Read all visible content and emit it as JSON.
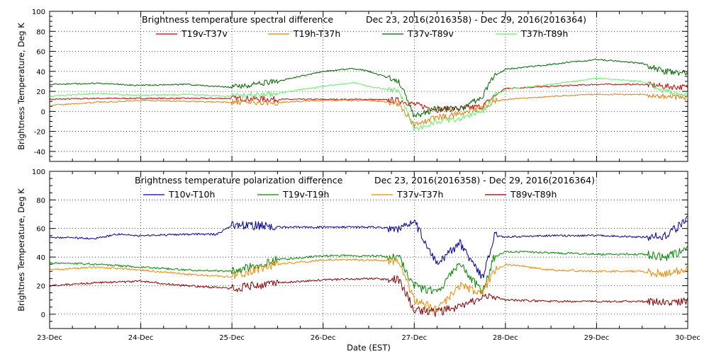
{
  "chart_data": [
    {
      "type": "line",
      "title": "Brightness temperature spectral difference",
      "date_range": "Dec 23, 2016(2016358) - Dec 29, 2016(2016364)",
      "ylabel": "Brightness Temperature, Deg K",
      "xlabel": "",
      "ylim": [
        -50,
        100
      ],
      "yticks": [
        -40,
        -20,
        0,
        20,
        40,
        60,
        80,
        100
      ],
      "xlim": [
        "2016-12-23",
        "2016-12-30"
      ],
      "grid": true,
      "legend_position": "top",
      "series": [
        {
          "name": "T19v-T37v",
          "color": "#cc0000",
          "points": [
            [
              "2016-12-23 00:00",
              12
            ],
            [
              "2016-12-23 12:00",
              13
            ],
            [
              "2016-12-24 00:00",
              13
            ],
            [
              "2016-12-24 12:00",
              13
            ],
            [
              "2016-12-25 00:00",
              13
            ],
            [
              "2016-12-25 12:00",
              12
            ],
            [
              "2016-12-26 00:00",
              12
            ],
            [
              "2016-12-26 12:00",
              12
            ],
            [
              "2016-12-26 20:00",
              11
            ],
            [
              "2016-12-27 00:00",
              7
            ],
            [
              "2016-12-27 06:00",
              2
            ],
            [
              "2016-12-27 12:00",
              3
            ],
            [
              "2016-12-27 18:00",
              5
            ],
            [
              "2016-12-27 21:00",
              15
            ],
            [
              "2016-12-28 00:00",
              23
            ],
            [
              "2016-12-28 12:00",
              25
            ],
            [
              "2016-12-29 00:00",
              27
            ],
            [
              "2016-12-29 12:00",
              27
            ],
            [
              "2016-12-29 18:00",
              25
            ],
            [
              "2016-12-30 00:00",
              24
            ]
          ]
        },
        {
          "name": "T19h-T37h",
          "color": "#e08010",
          "points": [
            [
              "2016-12-23 00:00",
              6
            ],
            [
              "2016-12-23 12:00",
              9
            ],
            [
              "2016-12-24 00:00",
              11
            ],
            [
              "2016-12-24 12:00",
              10
            ],
            [
              "2016-12-25 00:00",
              9
            ],
            [
              "2016-12-25 12:00",
              9
            ],
            [
              "2016-12-26 00:00",
              11
            ],
            [
              "2016-12-26 12:00",
              11
            ],
            [
              "2016-12-26 20:00",
              8
            ],
            [
              "2016-12-27 00:00",
              -14
            ],
            [
              "2016-12-27 06:00",
              -6
            ],
            [
              "2016-12-27 12:00",
              -3
            ],
            [
              "2016-12-27 18:00",
              4
            ],
            [
              "2016-12-27 21:00",
              10
            ],
            [
              "2016-12-28 00:00",
              12
            ],
            [
              "2016-12-28 12:00",
              15
            ],
            [
              "2016-12-29 00:00",
              17
            ],
            [
              "2016-12-29 12:00",
              17
            ],
            [
              "2016-12-29 18:00",
              15
            ],
            [
              "2016-12-30 00:00",
              14
            ]
          ]
        },
        {
          "name": "T37v-T89v",
          "color": "#006400",
          "points": [
            [
              "2016-12-23 00:00",
              27
            ],
            [
              "2016-12-23 12:00",
              28
            ],
            [
              "2016-12-24 00:00",
              26
            ],
            [
              "2016-12-24 12:00",
              27
            ],
            [
              "2016-12-25 00:00",
              24
            ],
            [
              "2016-12-25 12:00",
              30
            ],
            [
              "2016-12-26 00:00",
              40
            ],
            [
              "2016-12-26 08:00",
              43
            ],
            [
              "2016-12-26 12:00",
              40
            ],
            [
              "2016-12-26 20:00",
              30
            ],
            [
              "2016-12-27 00:00",
              -5
            ],
            [
              "2016-12-27 06:00",
              3
            ],
            [
              "2016-12-27 12:00",
              2
            ],
            [
              "2016-12-27 18:00",
              15
            ],
            [
              "2016-12-27 21:00",
              35
            ],
            [
              "2016-12-28 00:00",
              42
            ],
            [
              "2016-12-28 12:00",
              47
            ],
            [
              "2016-12-29 00:00",
              52
            ],
            [
              "2016-12-29 12:00",
              48
            ],
            [
              "2016-12-29 18:00",
              40
            ],
            [
              "2016-12-30 00:00",
              38
            ]
          ]
        },
        {
          "name": "T37h-T89h",
          "color": "#66ee66",
          "points": [
            [
              "2016-12-23 00:00",
              15
            ],
            [
              "2016-12-23 12:00",
              18
            ],
            [
              "2016-12-24 00:00",
              16
            ],
            [
              "2016-12-24 12:00",
              17
            ],
            [
              "2016-12-25 00:00",
              15
            ],
            [
              "2016-12-25 12:00",
              18
            ],
            [
              "2016-12-26 00:00",
              25
            ],
            [
              "2016-12-26 08:00",
              29
            ],
            [
              "2016-12-26 12:00",
              25
            ],
            [
              "2016-12-26 20:00",
              20
            ],
            [
              "2016-12-27 00:00",
              -18
            ],
            [
              "2016-12-27 06:00",
              -10
            ],
            [
              "2016-12-27 12:00",
              -7
            ],
            [
              "2016-12-27 18:00",
              0
            ],
            [
              "2016-12-27 21:00",
              15
            ],
            [
              "2016-12-28 00:00",
              22
            ],
            [
              "2016-12-28 12:00",
              27
            ],
            [
              "2016-12-29 00:00",
              33
            ],
            [
              "2016-12-29 12:00",
              30
            ],
            [
              "2016-12-29 18:00",
              20
            ],
            [
              "2016-12-30 00:00",
              15
            ]
          ]
        }
      ]
    },
    {
      "type": "line",
      "title": "Brightness temperature polarization difference",
      "date_range": "Dec 23, 2016(2016358) - Dec 29, 2016(2016364)",
      "ylabel": "Brightnes Temperature, Deg K",
      "xlabel": "Date (EST)",
      "ylim": [
        -10,
        100
      ],
      "yticks": [
        0,
        20,
        40,
        60,
        80,
        100
      ],
      "xlim": [
        "2016-12-23",
        "2016-12-30"
      ],
      "xticks": [
        "23-Dec",
        "24-Dec",
        "25-Dec",
        "26-Dec",
        "27-Dec",
        "28-Dec",
        "29-Dec",
        "30-Dec"
      ],
      "grid": true,
      "legend_position": "top",
      "series": [
        {
          "name": "T10v-T10h",
          "color": "#000099",
          "points": [
            [
              "2016-12-23 00:00",
              54
            ],
            [
              "2016-12-23 12:00",
              53
            ],
            [
              "2016-12-23 18:00",
              56
            ],
            [
              "2016-12-24 00:00",
              55
            ],
            [
              "2016-12-24 12:00",
              56
            ],
            [
              "2016-12-24 20:00",
              56
            ],
            [
              "2016-12-25 00:00",
              62
            ],
            [
              "2016-12-25 09:00",
              62
            ],
            [
              "2016-12-25 12:00",
              61
            ],
            [
              "2016-12-26 00:00",
              61
            ],
            [
              "2016-12-26 12:00",
              61
            ],
            [
              "2016-12-26 20:00",
              60
            ],
            [
              "2016-12-27 00:00",
              65
            ],
            [
              "2016-12-27 06:00",
              35
            ],
            [
              "2016-12-27 12:00",
              50
            ],
            [
              "2016-12-27 18:00",
              25
            ],
            [
              "2016-12-27 21:00",
              55
            ],
            [
              "2016-12-28 00:00",
              54
            ],
            [
              "2016-12-28 12:00",
              55
            ],
            [
              "2016-12-29 00:00",
              55
            ],
            [
              "2016-12-29 12:00",
              54
            ],
            [
              "2016-12-29 18:00",
              55
            ],
            [
              "2016-12-30 00:00",
              66
            ]
          ]
        },
        {
          "name": "T19v-T19h",
          "color": "#008800",
          "points": [
            [
              "2016-12-23 00:00",
              36
            ],
            [
              "2016-12-23 12:00",
              35
            ],
            [
              "2016-12-24 00:00",
              33
            ],
            [
              "2016-12-24 12:00",
              31
            ],
            [
              "2016-12-25 00:00",
              30
            ],
            [
              "2016-12-25 12:00",
              38
            ],
            [
              "2016-12-26 00:00",
              41
            ],
            [
              "2016-12-26 12:00",
              41
            ],
            [
              "2016-12-26 20:00",
              40
            ],
            [
              "2016-12-27 00:00",
              20
            ],
            [
              "2016-12-27 06:00",
              15
            ],
            [
              "2016-12-27 12:00",
              35
            ],
            [
              "2016-12-27 18:00",
              15
            ],
            [
              "2016-12-27 21:00",
              40
            ],
            [
              "2016-12-28 00:00",
              44
            ],
            [
              "2016-12-28 12:00",
              43
            ],
            [
              "2016-12-29 00:00",
              42
            ],
            [
              "2016-12-29 12:00",
              42
            ],
            [
              "2016-12-29 18:00",
              40
            ],
            [
              "2016-12-30 00:00",
              45
            ]
          ]
        },
        {
          "name": "T37v-T37h",
          "color": "#ee8800",
          "points": [
            [
              "2016-12-23 00:00",
              31
            ],
            [
              "2016-12-23 12:00",
              33
            ],
            [
              "2016-12-24 00:00",
              31
            ],
            [
              "2016-12-24 12:00",
              28
            ],
            [
              "2016-12-25 00:00",
              26
            ],
            [
              "2016-12-25 12:00",
              35
            ],
            [
              "2016-12-26 00:00",
              38
            ],
            [
              "2016-12-26 12:00",
              38
            ],
            [
              "2016-12-26 20:00",
              37
            ],
            [
              "2016-12-27 00:00",
              10
            ],
            [
              "2016-12-27 06:00",
              3
            ],
            [
              "2016-12-27 12:00",
              20
            ],
            [
              "2016-12-27 18:00",
              15
            ],
            [
              "2016-12-27 21:00",
              30
            ],
            [
              "2016-12-28 00:00",
              35
            ],
            [
              "2016-12-28 12:00",
              31
            ],
            [
              "2016-12-29 00:00",
              30
            ],
            [
              "2016-12-29 12:00",
              30
            ],
            [
              "2016-12-29 18:00",
              28
            ],
            [
              "2016-12-30 00:00",
              32
            ]
          ]
        },
        {
          "name": "T89v-T89h",
          "color": "#880000",
          "points": [
            [
              "2016-12-23 00:00",
              20
            ],
            [
              "2016-12-23 12:00",
              22
            ],
            [
              "2016-12-24 00:00",
              23
            ],
            [
              "2016-12-24 12:00",
              20
            ],
            [
              "2016-12-25 00:00",
              18
            ],
            [
              "2016-12-25 12:00",
              22
            ],
            [
              "2016-12-26 00:00",
              24
            ],
            [
              "2016-12-26 12:00",
              25
            ],
            [
              "2016-12-26 20:00",
              24
            ],
            [
              "2016-12-27 00:00",
              3
            ],
            [
              "2016-12-27 06:00",
              1
            ],
            [
              "2016-12-27 12:00",
              6
            ],
            [
              "2016-12-27 18:00",
              12
            ],
            [
              "2016-12-27 21:00",
              13
            ],
            [
              "2016-12-28 00:00",
              10
            ],
            [
              "2016-12-28 12:00",
              9
            ],
            [
              "2016-12-29 00:00",
              9
            ],
            [
              "2016-12-29 12:00",
              9
            ],
            [
              "2016-12-29 18:00",
              8
            ],
            [
              "2016-12-30 00:00",
              9
            ]
          ]
        }
      ]
    }
  ]
}
